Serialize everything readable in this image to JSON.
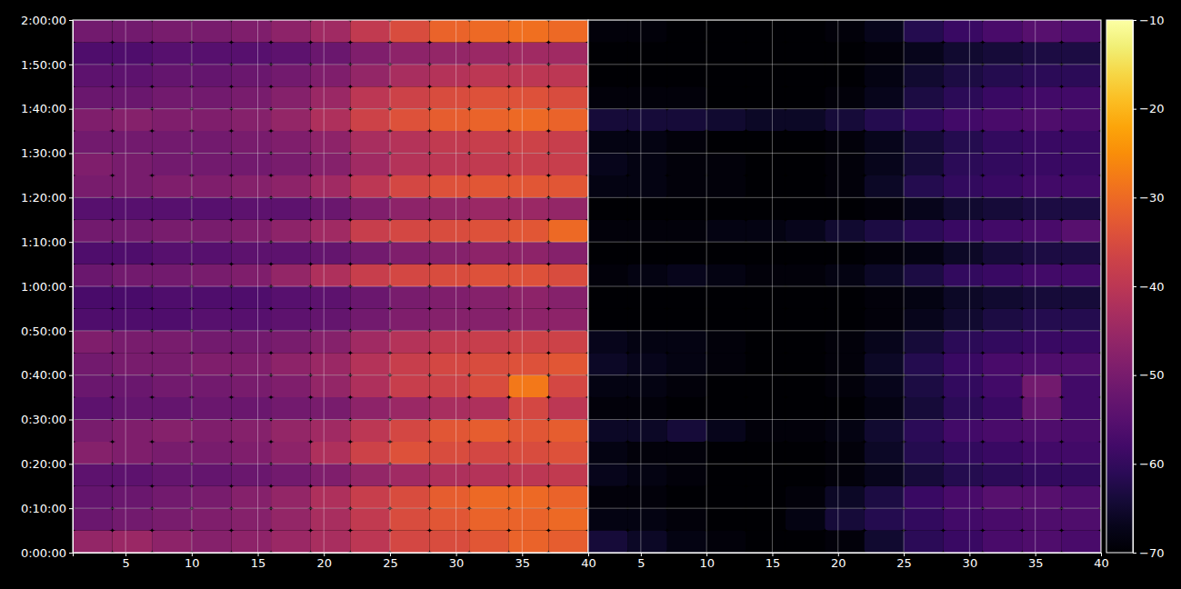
{
  "chart_data": [
    {
      "type": "heatmap",
      "x": [
        2.5,
        5.5,
        8.5,
        11.5,
        14.5,
        17.5,
        20.5,
        23.5,
        26.5,
        29.5,
        32.5,
        35.5,
        38.5
      ],
      "y": [
        150,
        450,
        750,
        1050,
        1350,
        1650,
        1950,
        2250,
        2550,
        2850,
        3150,
        3450,
        3750,
        4050,
        4350,
        4650,
        4950,
        5250,
        5550,
        5850,
        6150,
        6450,
        6750,
        7050
      ],
      "xlim": [
        1,
        40
      ],
      "ylim": [
        0,
        7200
      ],
      "xticks": [
        5,
        10,
        15,
        20,
        25,
        30,
        35,
        40
      ],
      "yticks": [
        {
          "value": 0,
          "label": "0:00:00"
        },
        {
          "value": 600,
          "label": "0:10:00"
        },
        {
          "value": 1200,
          "label": "0:20:00"
        },
        {
          "value": 1800,
          "label": "0:30:00"
        },
        {
          "value": 2400,
          "label": "0:40:00"
        },
        {
          "value": 3000,
          "label": "0:50:00"
        },
        {
          "value": 3600,
          "label": "1:00:00"
        },
        {
          "value": 4200,
          "label": "1:10:00"
        },
        {
          "value": 4800,
          "label": "1:20:00"
        },
        {
          "value": 5400,
          "label": "1:30:00"
        },
        {
          "value": 6000,
          "label": "1:40:00"
        },
        {
          "value": 6600,
          "label": "1:50:00"
        },
        {
          "value": 7200,
          "label": "2:00:00"
        }
      ],
      "grid": true,
      "z": [
        [
          -46,
          -45,
          -47,
          -48,
          -47,
          -45,
          -43,
          -40,
          -36,
          -35,
          -33,
          -31,
          -32
        ],
        [
          -52,
          -51,
          -50,
          -49,
          -48,
          -46,
          -43,
          -39,
          -35,
          -33,
          -31,
          -31,
          -30
        ],
        [
          -53,
          -52,
          -51,
          -50,
          -48,
          -46,
          -42,
          -38,
          -35,
          -32,
          -30,
          -30,
          -31
        ],
        [
          -54,
          -54,
          -53,
          -53,
          -52,
          -51,
          -49,
          -46,
          -44,
          -42,
          -41,
          -40,
          -39
        ],
        [
          -48,
          -49,
          -50,
          -50,
          -49,
          -47,
          -42,
          -37,
          -34,
          -35,
          -36,
          -35,
          -34
        ],
        [
          -50,
          -49,
          -48,
          -49,
          -48,
          -46,
          -44,
          -40,
          -36,
          -33,
          -32,
          -33,
          -32
        ],
        [
          -54,
          -53,
          -53,
          -52,
          -52,
          -51,
          -50,
          -47,
          -45,
          -43,
          -42,
          -36,
          -40
        ],
        [
          -52,
          -52,
          -51,
          -51,
          -50,
          -49,
          -46,
          -42,
          -38,
          -37,
          -35,
          -28,
          -36
        ],
        [
          -51,
          -50,
          -50,
          -49,
          -49,
          -47,
          -45,
          -41,
          -38,
          -36,
          -35,
          -34,
          -33
        ],
        [
          -49,
          -50,
          -50,
          -51,
          -51,
          -50,
          -48,
          -44,
          -41,
          -39,
          -38,
          -37,
          -37
        ],
        [
          -56,
          -56,
          -56,
          -55,
          -55,
          -54,
          -53,
          -51,
          -49,
          -48,
          -48,
          -47,
          -47
        ],
        [
          -57,
          -57,
          -56,
          -56,
          -56,
          -55,
          -54,
          -52,
          -50,
          -49,
          -48,
          -47,
          -48
        ],
        [
          -52,
          -51,
          -51,
          -50,
          -49,
          -46,
          -42,
          -38,
          -36,
          -35,
          -34,
          -34,
          -35
        ],
        [
          -56,
          -56,
          -55,
          -55,
          -54,
          -54,
          -53,
          -51,
          -49,
          -48,
          -47,
          -47,
          -48
        ],
        [
          -51,
          -51,
          -50,
          -50,
          -49,
          -47,
          -44,
          -38,
          -36,
          -35,
          -34,
          -33,
          -30
        ],
        [
          -55,
          -55,
          -55,
          -55,
          -54,
          -54,
          -52,
          -49,
          -47,
          -46,
          -45,
          -45,
          -46
        ],
        [
          -50,
          -50,
          -49,
          -49,
          -48,
          -47,
          -44,
          -40,
          -36,
          -34,
          -33,
          -33,
          -33
        ],
        [
          -49,
          -50,
          -51,
          -51,
          -51,
          -50,
          -48,
          -44,
          -41,
          -40,
          -39,
          -38,
          -38
        ],
        [
          -51,
          -51,
          -51,
          -51,
          -50,
          -49,
          -47,
          -43,
          -41,
          -39,
          -38,
          -37,
          -38
        ],
        [
          -49,
          -48,
          -49,
          -49,
          -48,
          -46,
          -42,
          -37,
          -34,
          -32,
          -31,
          -30,
          -31
        ],
        [
          -52,
          -52,
          -51,
          -51,
          -50,
          -48,
          -45,
          -40,
          -37,
          -35,
          -34,
          -34,
          -35
        ],
        [
          -54,
          -54,
          -53,
          -53,
          -52,
          -51,
          -49,
          -46,
          -43,
          -41,
          -40,
          -40,
          -40
        ],
        [
          -56,
          -56,
          -55,
          -55,
          -55,
          -54,
          -52,
          -49,
          -47,
          -46,
          -45,
          -44,
          -44
        ],
        [
          -51,
          -51,
          -50,
          -50,
          -49,
          -47,
          -44,
          -39,
          -35,
          -31,
          -30,
          -29,
          -30
        ]
      ]
    },
    {
      "type": "heatmap",
      "x": [
        2.5,
        5.5,
        8.5,
        11.5,
        14.5,
        17.5,
        20.5,
        23.5,
        26.5,
        29.5,
        32.5,
        35.5,
        38.5
      ],
      "y": [
        150,
        450,
        750,
        1050,
        1350,
        1650,
        1950,
        2250,
        2550,
        2850,
        3150,
        3450,
        3750,
        4050,
        4350,
        4650,
        4950,
        5250,
        5550,
        5850,
        6150,
        6450,
        6750,
        7050
      ],
      "xlim": [
        1,
        40
      ],
      "ylim": [
        0,
        7200
      ],
      "xticks": [
        5,
        10,
        15,
        20,
        25,
        30,
        35,
        40
      ],
      "yticks": [
        0,
        600,
        1200,
        1800,
        2400,
        3000,
        3600,
        4200,
        4800,
        5400,
        6000,
        6600,
        7200
      ],
      "grid": true,
      "tick_labels": "x",
      "z": [
        [
          -64,
          -66,
          -68,
          -69,
          -70,
          -70,
          -69,
          -65,
          -61,
          -59,
          -57,
          -56,
          -57
        ],
        [
          -68,
          -68,
          -69,
          -70,
          -70,
          -68,
          -64,
          -62,
          -60,
          -58,
          -57,
          -56,
          -56
        ],
        [
          -69,
          -69,
          -70,
          -70,
          -70,
          -69,
          -66,
          -63,
          -59,
          -57,
          -55,
          -55,
          -56
        ],
        [
          -67,
          -68,
          -69,
          -70,
          -70,
          -70,
          -69,
          -67,
          -64,
          -62,
          -61,
          -60,
          -60
        ],
        [
          -68,
          -69,
          -69,
          -70,
          -70,
          -70,
          -69,
          -66,
          -62,
          -60,
          -59,
          -58,
          -58
        ],
        [
          -66,
          -66,
          -64,
          -67,
          -69,
          -69,
          -68,
          -65,
          -61,
          -58,
          -57,
          -56,
          -57
        ],
        [
          -69,
          -69,
          -70,
          -70,
          -70,
          -70,
          -70,
          -68,
          -64,
          -61,
          -59,
          -53,
          -58
        ],
        [
          -68,
          -68,
          -69,
          -70,
          -70,
          -70,
          -69,
          -67,
          -63,
          -60,
          -58,
          -51,
          -58
        ],
        [
          -66,
          -67,
          -68,
          -69,
          -70,
          -70,
          -69,
          -66,
          -62,
          -59,
          -57,
          -56,
          -56
        ],
        [
          -67,
          -68,
          -68,
          -69,
          -70,
          -70,
          -69,
          -67,
          -64,
          -61,
          -60,
          -59,
          -59
        ],
        [
          -70,
          -70,
          -70,
          -70,
          -70,
          -70,
          -70,
          -69,
          -67,
          -65,
          -63,
          -62,
          -62
        ],
        [
          -70,
          -70,
          -70,
          -70,
          -70,
          -70,
          -70,
          -69,
          -68,
          -66,
          -65,
          -64,
          -64
        ],
        [
          -69,
          -68,
          -67,
          -68,
          -69,
          -69,
          -68,
          -66,
          -63,
          -60,
          -59,
          -58,
          -58
        ],
        [
          -70,
          -70,
          -70,
          -70,
          -70,
          -70,
          -70,
          -69,
          -68,
          -66,
          -64,
          -63,
          -63
        ],
        [
          -69,
          -69,
          -69,
          -68,
          -68,
          -67,
          -65,
          -63,
          -61,
          -59,
          -58,
          -57,
          -55
        ],
        [
          -70,
          -70,
          -70,
          -70,
          -70,
          -70,
          -70,
          -69,
          -67,
          -65,
          -64,
          -63,
          -63
        ],
        [
          -68,
          -68,
          -69,
          -69,
          -70,
          -70,
          -69,
          -66,
          -62,
          -60,
          -59,
          -58,
          -58
        ],
        [
          -67,
          -68,
          -69,
          -69,
          -70,
          -70,
          -69,
          -67,
          -64,
          -61,
          -60,
          -59,
          -59
        ],
        [
          -68,
          -68,
          -69,
          -70,
          -70,
          -70,
          -69,
          -67,
          -64,
          -62,
          -60,
          -59,
          -59
        ],
        [
          -64,
          -64,
          -64,
          -65,
          -66,
          -66,
          -64,
          -62,
          -60,
          -58,
          -57,
          -56,
          -57
        ],
        [
          -69,
          -69,
          -69,
          -70,
          -70,
          -70,
          -69,
          -67,
          -63,
          -61,
          -59,
          -58,
          -58
        ],
        [
          -70,
          -70,
          -70,
          -70,
          -70,
          -70,
          -70,
          -68,
          -65,
          -63,
          -62,
          -61,
          -61
        ],
        [
          -70,
          -70,
          -70,
          -70,
          -70,
          -70,
          -70,
          -69,
          -67,
          -65,
          -64,
          -63,
          -63
        ],
        [
          -69,
          -69,
          -70,
          -70,
          -70,
          -70,
          -69,
          -67,
          -62,
          -59,
          -57,
          -55,
          -56
        ]
      ],
      "colorbar": {
        "range": [
          -70,
          -10
        ],
        "ticks": [
          {
            "value": -70,
            "label": "−70"
          },
          {
            "value": -60,
            "label": "−60"
          },
          {
            "value": -50,
            "label": "−50"
          },
          {
            "value": -40,
            "label": "−40"
          },
          {
            "value": -30,
            "label": "−30"
          },
          {
            "value": -20,
            "label": "−20"
          },
          {
            "value": -10,
            "label": "−10"
          }
        ]
      }
    }
  ]
}
